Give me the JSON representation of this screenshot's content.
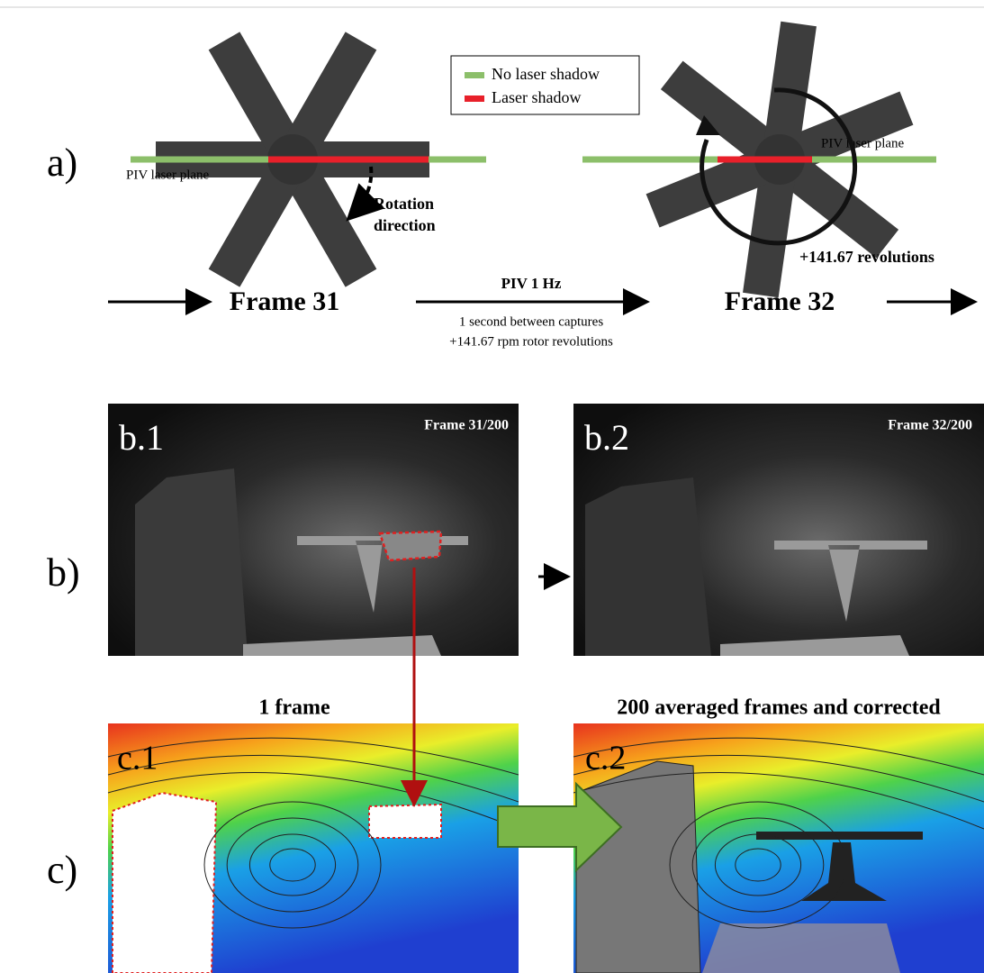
{
  "panel_a": {
    "label": "a)",
    "legend": [
      "No laser shadow",
      "Laser shadow"
    ],
    "frames": [
      {
        "laser_plane": "PIV laser plane",
        "rotation": [
          "Rotation",
          "direction"
        ],
        "title": "Frame 31"
      },
      {
        "laser_plane": "PIV laser plane",
        "revolutions": "+141.67 revolutions",
        "title": "Frame 32"
      }
    ],
    "timing": {
      "title": "PIV 1 Hz",
      "lines": [
        "1 second between captures",
        "+141.67 rpm rotor revolutions"
      ]
    }
  },
  "panel_b": {
    "label": "b)",
    "images": [
      {
        "label": "b.1",
        "frame": "Frame 31/200"
      },
      {
        "label": "b.2",
        "frame": "Frame 32/200"
      }
    ]
  },
  "panel_c": {
    "label": "c)",
    "images": [
      {
        "label": "c.1",
        "title": "1 frame"
      },
      {
        "label": "c.2",
        "title": "200 averaged frames and corrected"
      }
    ]
  }
}
